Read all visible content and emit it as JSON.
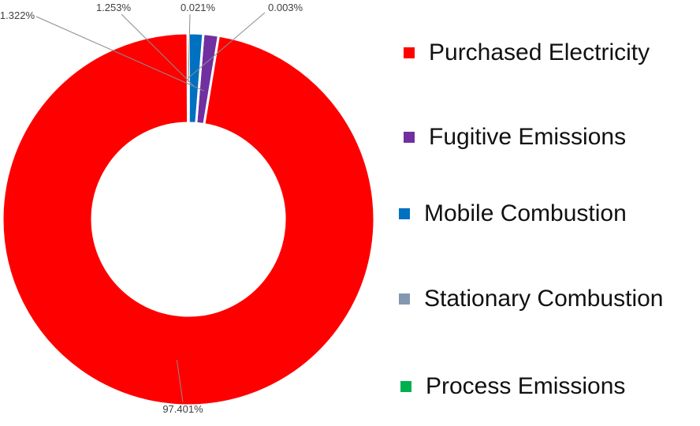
{
  "chart_data": {
    "type": "pie",
    "donut": true,
    "title": "",
    "series": [
      {
        "name": "Purchased Electricity",
        "value": 97.401,
        "label": "97.401%",
        "color": "#ff0000"
      },
      {
        "name": "Fugitive Emissions",
        "value": 1.322,
        "label": "1.322%",
        "color": "#7030a0"
      },
      {
        "name": "Mobile Combustion",
        "value": 1.253,
        "label": "1.253%",
        "color": "#0070c0"
      },
      {
        "name": "Stationary Combustion",
        "value": 0.021,
        "label": "0.021%",
        "color": "#8497b0"
      },
      {
        "name": "Process Emissions",
        "value": 0.003,
        "label": "0.003%",
        "color": "#00b050"
      }
    ],
    "legend_position": "right"
  }
}
